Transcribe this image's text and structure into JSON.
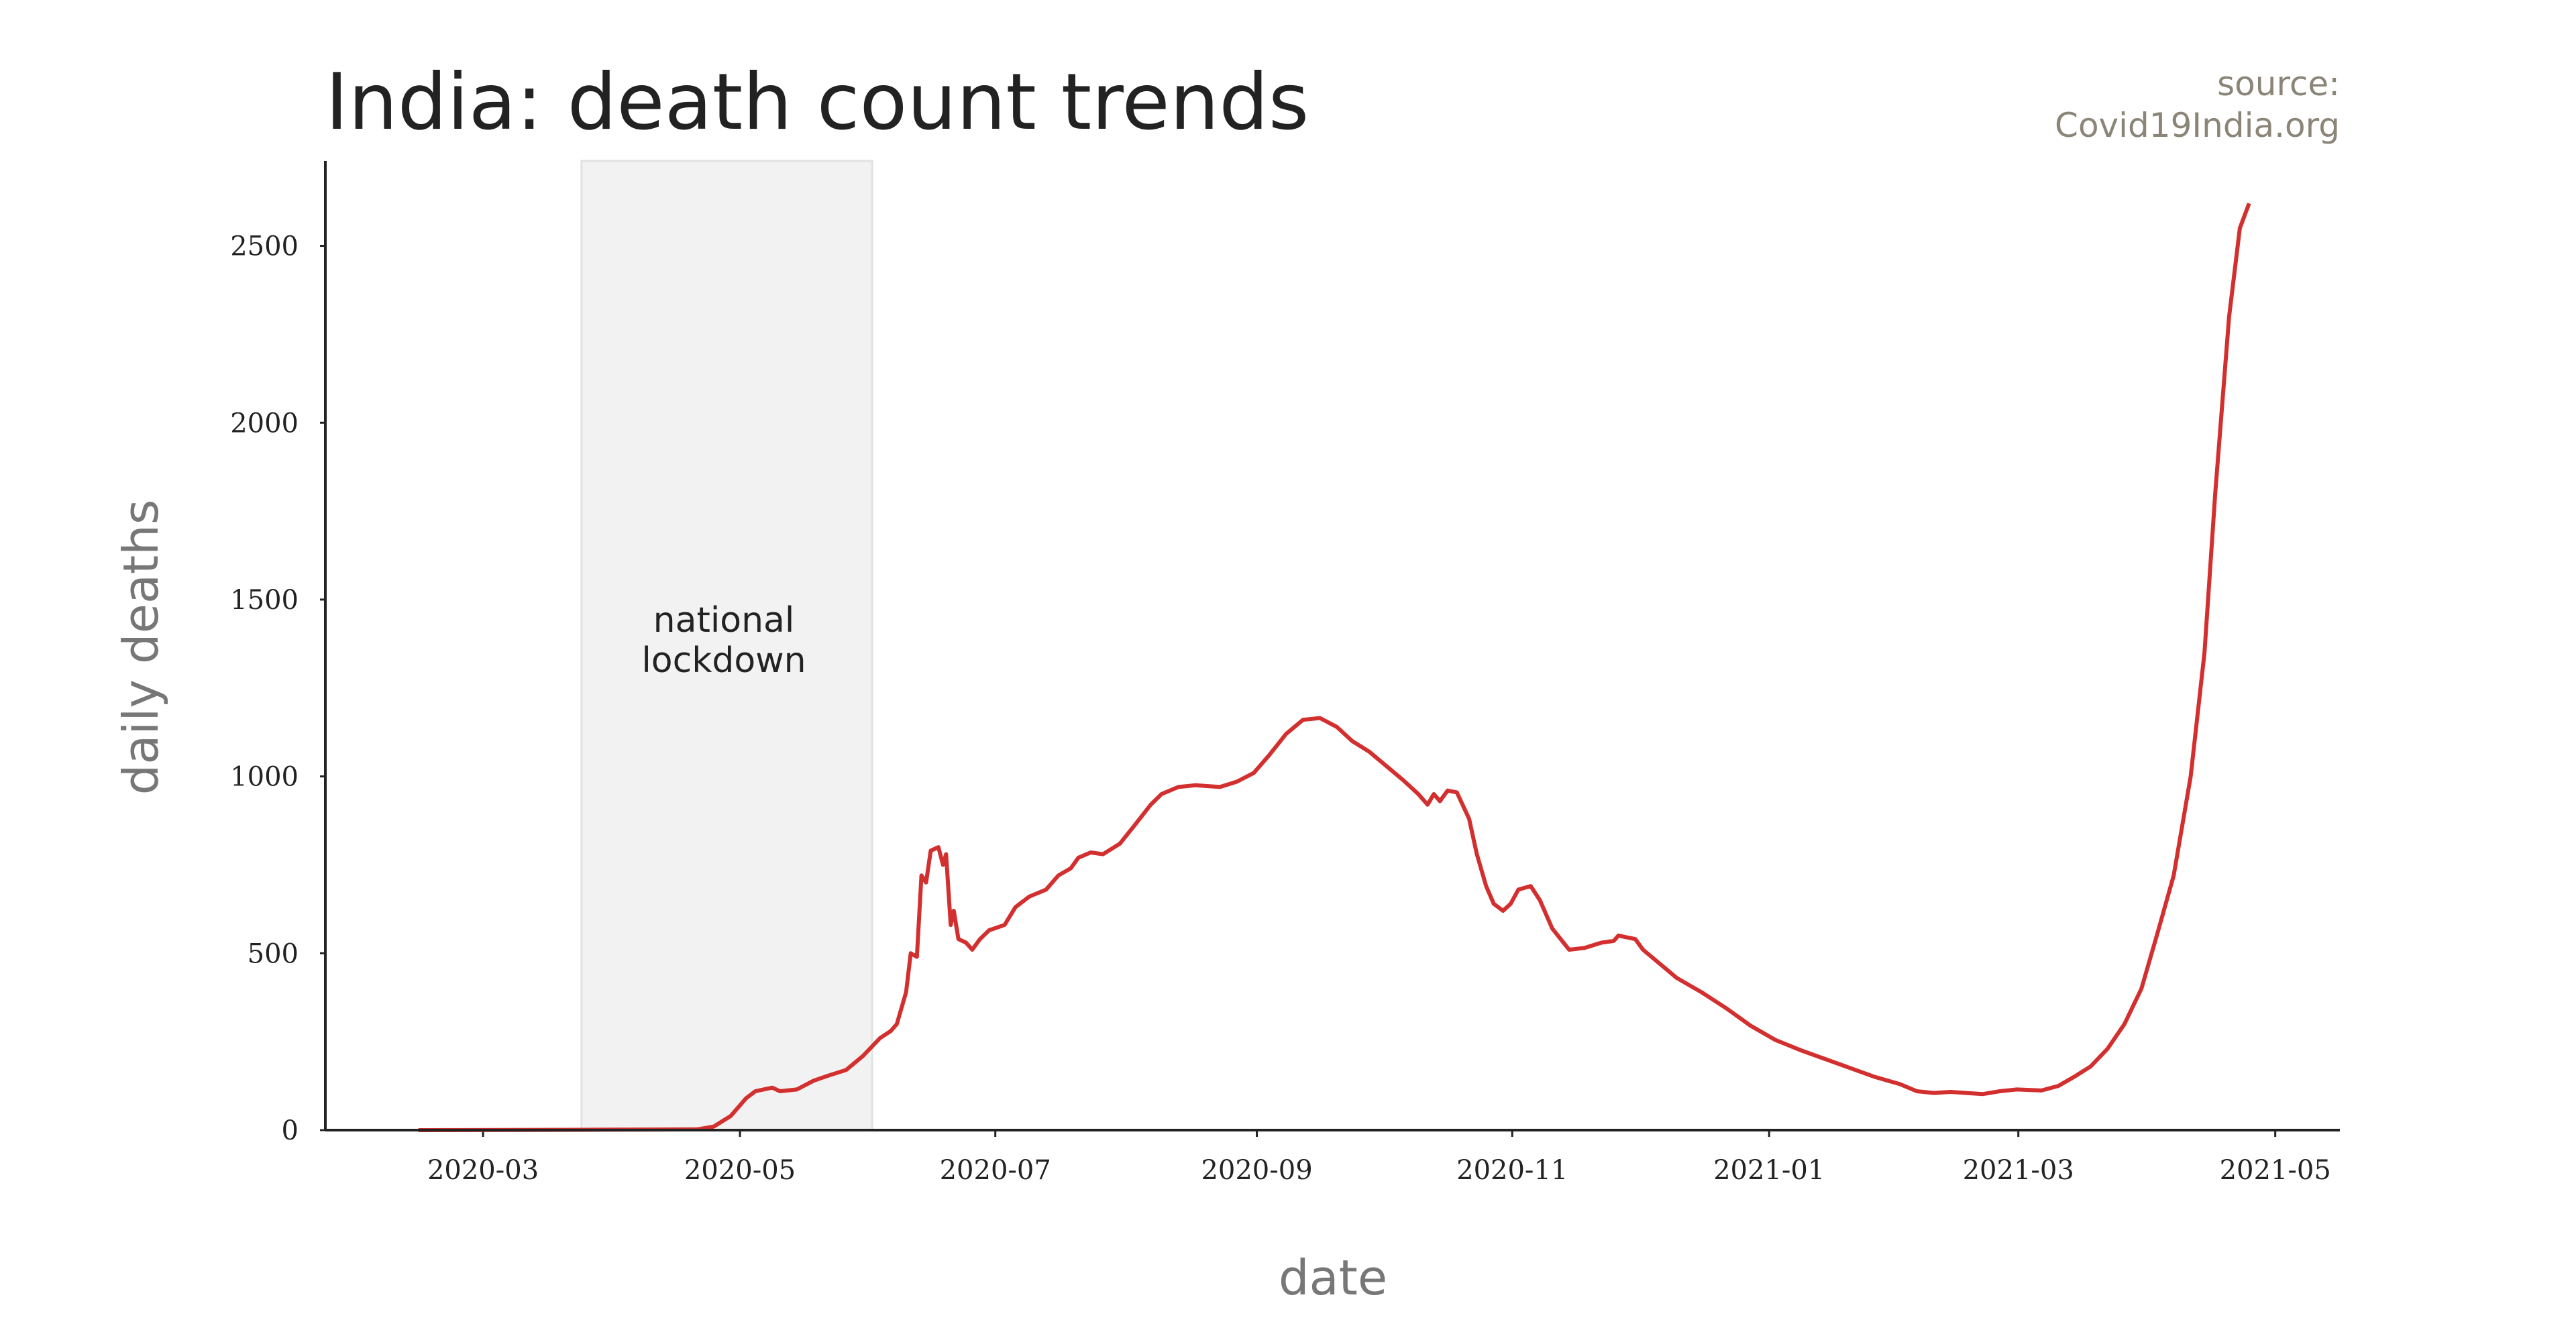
{
  "chart_data": {
    "type": "line",
    "title": "India: death count trends",
    "source": [
      "source:",
      "Covid19India.org"
    ],
    "xlabel": "date",
    "ylabel": "daily deaths",
    "color": "#d32f2f",
    "shaded_span": {
      "xlim": [
        2020.228,
        2020.417
      ],
      "label": "national lockdown"
    },
    "xlim": [
      2020.0615,
      2021.371
    ],
    "ylim": [
      0,
      2740
    ],
    "xticks": [
      {
        "value": 2020.164,
        "label": "2020-03"
      },
      {
        "value": 2020.331,
        "label": "2020-05"
      },
      {
        "value": 2020.497,
        "label": "2020-07"
      },
      {
        "value": 2020.667,
        "label": "2020-09"
      },
      {
        "value": 2020.833,
        "label": "2020-11"
      },
      {
        "value": 2021.0,
        "label": "2021-01"
      },
      {
        "value": 2021.162,
        "label": "2021-03"
      },
      {
        "value": 2021.329,
        "label": "2021-05"
      }
    ],
    "yticks": [
      0,
      500,
      1000,
      1500,
      2000,
      2500
    ],
    "x": [
      2020.122,
      2020.228,
      2020.303,
      2020.314,
      2020.325,
      2020.335,
      2020.341,
      2020.352,
      2020.357,
      2020.368,
      2020.379,
      2020.389,
      2020.4,
      2020.411,
      2020.422,
      2020.429,
      2020.433,
      2020.439,
      2020.442,
      2020.446,
      2020.449,
      2020.452,
      2020.455,
      2020.46,
      2020.463,
      2020.465,
      2020.468,
      2020.47,
      2020.473,
      2020.478,
      2020.482,
      2020.487,
      2020.493,
      2020.503,
      2020.51,
      2020.519,
      2020.53,
      2020.538,
      2020.546,
      2020.551,
      2020.559,
      2020.567,
      2020.578,
      2020.589,
      2020.598,
      2020.605,
      2020.616,
      2020.627,
      2020.643,
      2020.654,
      2020.665,
      2020.675,
      2020.686,
      2020.697,
      2020.708,
      2020.719,
      2020.729,
      2020.74,
      2020.751,
      2020.762,
      2020.772,
      2020.778,
      2020.782,
      2020.786,
      2020.791,
      2020.797,
      2020.805,
      2020.81,
      2020.816,
      2020.821,
      2020.827,
      2020.832,
      2020.837,
      2020.845,
      2020.851,
      2020.859,
      2020.87,
      2020.88,
      2020.891,
      2020.899,
      2020.902,
      2020.913,
      2020.918,
      2020.929,
      2020.94,
      2020.956,
      2020.972,
      2020.988,
      2021.004,
      2021.021,
      2021.037,
      2021.053,
      2021.069,
      2021.085,
      2021.096,
      2021.107,
      2021.118,
      2021.128,
      2021.139,
      2021.15,
      2021.161,
      2021.177,
      2021.188,
      2021.198,
      2021.209,
      2021.22,
      2021.231,
      2021.242,
      2021.252,
      2021.263,
      2021.274,
      2021.283,
      2021.29,
      2021.299,
      2021.306,
      2021.312
    ],
    "values": [
      0,
      1,
      2,
      10,
      40,
      90,
      110,
      120,
      110,
      115,
      140,
      155,
      170,
      210,
      260,
      280,
      300,
      390,
      500,
      490,
      720,
      700,
      790,
      800,
      750,
      780,
      580,
      620,
      540,
      530,
      510,
      540,
      565,
      580,
      630,
      660,
      680,
      720,
      740,
      770,
      785,
      780,
      810,
      870,
      920,
      950,
      970,
      975,
      970,
      985,
      1010,
      1060,
      1120,
      1160,
      1165,
      1140,
      1100,
      1070,
      1030,
      990,
      950,
      920,
      950,
      930,
      960,
      955,
      880,
      780,
      690,
      640,
      620,
      640,
      680,
      690,
      650,
      570,
      510,
      515,
      530,
      535,
      550,
      540,
      510,
      470,
      430,
      390,
      345,
      295,
      255,
      225,
      200,
      175,
      150,
      130,
      110,
      105,
      108,
      105,
      102,
      110,
      115,
      112,
      125,
      150,
      180,
      230,
      300,
      400,
      550,
      720,
      1000,
      1350,
      1800,
      2300,
      2550,
      2620
    ]
  }
}
